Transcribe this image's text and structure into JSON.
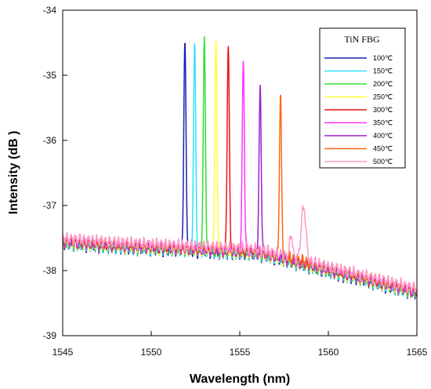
{
  "chart_data": {
    "type": "line",
    "xlabel": "Wavelength (nm)",
    "ylabel": "Intensity (dB )",
    "xlim": [
      1545,
      1565
    ],
    "ylim": [
      -39,
      -34
    ],
    "xticks": [
      1545,
      1550,
      1555,
      1560,
      1565
    ],
    "yticks": [
      -34,
      -35,
      -36,
      -37,
      -38,
      -39
    ],
    "xtick_labels": [
      "1545",
      "1550",
      "1555",
      "1560",
      "1565"
    ],
    "ytick_labels": [
      "-34",
      "-35",
      "-36",
      "-37",
      "-38",
      "-39"
    ],
    "grid": false,
    "legend": {
      "title": "TiN FBG",
      "position": "top-right"
    },
    "series": [
      {
        "name": "100℃",
        "color": "#1f1fb4",
        "peak_x": 1551.9,
        "peak_y": -34.45
      },
      {
        "name": "150℃",
        "color": "#33e0ff",
        "peak_x": 1552.45,
        "peak_y": -34.47
      },
      {
        "name": "200℃",
        "color": "#33dd33",
        "peak_x": 1553.0,
        "peak_y": -34.41
      },
      {
        "name": "250℃",
        "color": "#ffff33",
        "peak_x": 1553.65,
        "peak_y": -34.47
      },
      {
        "name": "300℃",
        "color": "#ee1111",
        "peak_x": 1554.35,
        "peak_y": -34.57
      },
      {
        "name": "350℃",
        "color": "#ff33ff",
        "peak_x": 1555.2,
        "peak_y": -34.85
      },
      {
        "name": "400℃",
        "color": "#9922cc",
        "peak_x": 1556.15,
        "peak_y": -35.22
      },
      {
        "name": "450℃",
        "color": "#ff6611",
        "peak_x": 1557.3,
        "peak_y": -35.35
      },
      {
        "name": "500℃",
        "color": "#ff99cc",
        "peak_x": 1558.6,
        "peak_y": -37.15
      }
    ]
  }
}
